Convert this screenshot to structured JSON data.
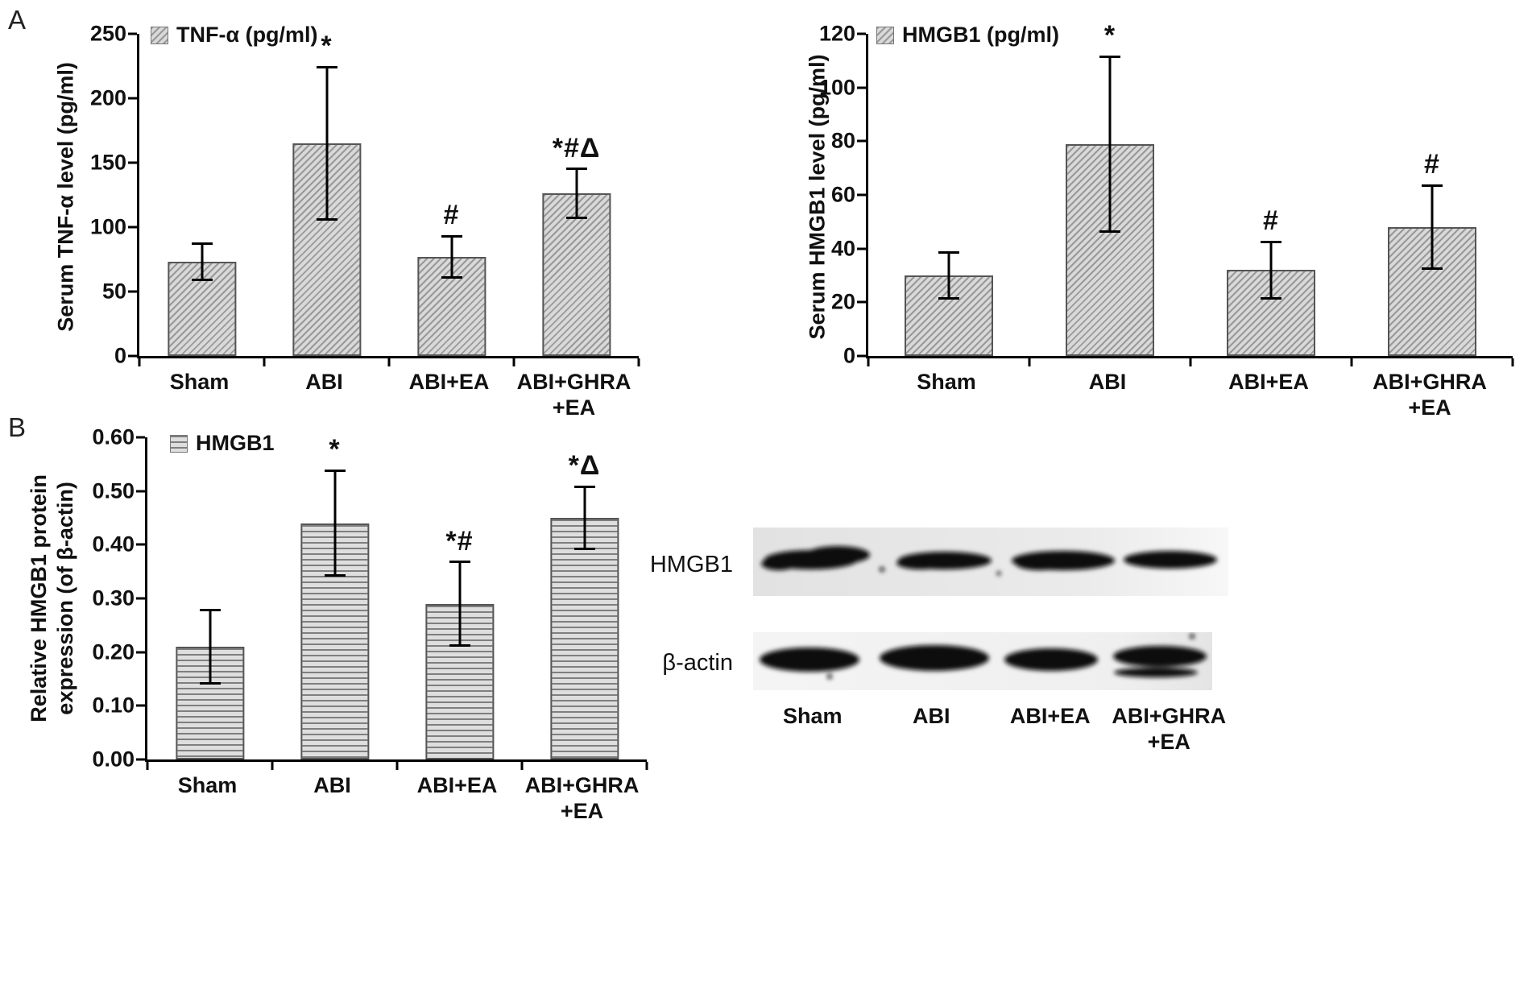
{
  "panels": {
    "a": "A",
    "b": "B"
  },
  "chart_data": [
    {
      "type": "bar",
      "panel": "A",
      "legend": "TNF-α (pg/ml)",
      "ylabel": "Serum TNF-α level (pg/ml)",
      "xlabel": "",
      "ylim": [
        0,
        250
      ],
      "yticks": [
        "0",
        "50",
        "100",
        "150",
        "200",
        "250"
      ],
      "categories": [
        "Sham",
        "ABI",
        "ABI+EA",
        "ABI+GHRA\n+EA"
      ],
      "values": [
        73,
        165,
        77,
        126
      ],
      "errors": [
        15,
        60,
        17,
        20
      ],
      "annotations": [
        "",
        "*",
        "#",
        "*#Δ"
      ],
      "hatch": "diagonal",
      "grid": false,
      "legend_position": "top-left"
    },
    {
      "type": "bar",
      "panel": "A",
      "legend": "HMGB1 (pg/ml)",
      "ylabel": "Serum HMGB1 level (pg/ml)",
      "xlabel": "",
      "ylim": [
        0,
        120
      ],
      "yticks": [
        "0",
        "20",
        "40",
        "60",
        "80",
        "100",
        "120"
      ],
      "categories": [
        "Sham",
        "ABI",
        "ABI+EA",
        "ABI+GHRA\n+EA"
      ],
      "values": [
        30,
        79,
        32,
        48
      ],
      "errors": [
        9,
        33,
        11,
        16
      ],
      "annotations": [
        "",
        "*",
        "#",
        "#"
      ],
      "hatch": "diagonal",
      "grid": false,
      "legend_position": "top-left"
    },
    {
      "type": "bar",
      "panel": "B",
      "legend": "HMGB1",
      "ylabel": "Relative HMGB1 protein\nexpression (of β-actin)",
      "xlabel": "",
      "ylim": [
        0,
        0.6
      ],
      "yticks": [
        "0.00",
        "0.10",
        "0.20",
        "0.30",
        "0.40",
        "0.50",
        "0.60"
      ],
      "categories": [
        "Sham",
        "ABI",
        "ABI+EA",
        "ABI+GHRA\n+EA"
      ],
      "values": [
        0.21,
        0.44,
        0.29,
        0.45
      ],
      "errors": [
        0.07,
        0.1,
        0.08,
        0.06
      ],
      "annotations": [
        "",
        "*",
        "*#",
        "*Δ"
      ],
      "hatch": "hlines",
      "grid": false,
      "legend_position": "top-left"
    }
  ],
  "blot": {
    "rows": [
      {
        "label": "HMGB1"
      },
      {
        "label": "β-actin"
      }
    ],
    "lanes": [
      "Sham",
      "ABI",
      "ABI+EA",
      "ABI+GHRA\n+EA"
    ]
  }
}
